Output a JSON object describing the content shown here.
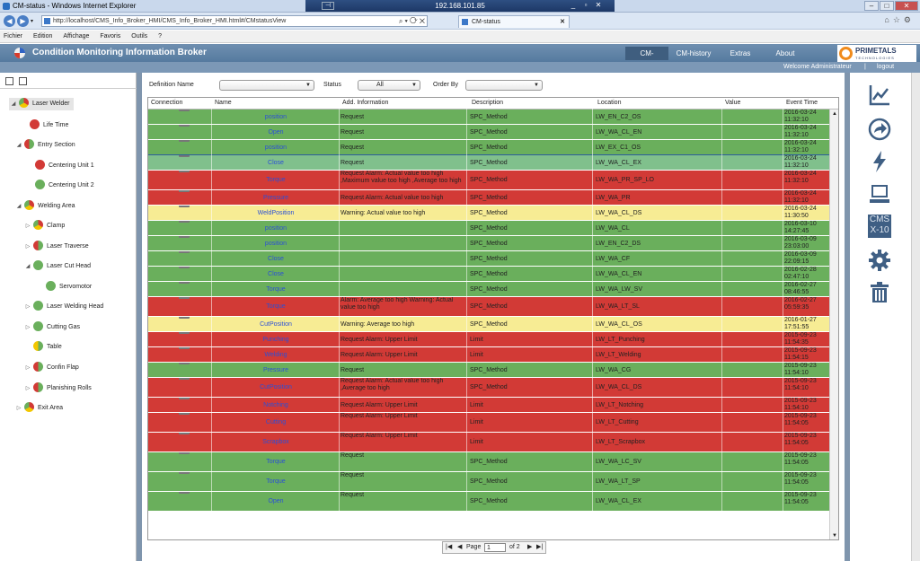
{
  "window": {
    "title": "CM-status - Windows Internet Explorer",
    "remote_host": "192.168.101.85"
  },
  "browser": {
    "address": "http://localhost/CMS_Info_Broker_HMI/CMS_Info_Broker_HMI.html#/CMstatusView",
    "tab_title": "CM-status",
    "menu": [
      "Fichier",
      "Edition",
      "Affichage",
      "Favoris",
      "Outils",
      "?"
    ]
  },
  "app": {
    "title": "Condition Monitoring Information Broker",
    "nav": [
      "CM-status",
      "CM-history",
      "Extras",
      "About"
    ],
    "brand": "PRIMETALS",
    "brand_sub": "TECHNOLOGIES",
    "welcome": "Welcome Administrateur",
    "separator": "|",
    "logout": "logout"
  },
  "colors": {
    "green": "#6aaf5c",
    "red": "#d23a36",
    "yellow": "#f7ec94",
    "header": "#5f84a9"
  },
  "tree": [
    {
      "label": "Laser Welder",
      "status": "mixed-ryg",
      "selected": true
    },
    {
      "label": "Life Time",
      "status": "red"
    },
    {
      "label": "Entry Section",
      "status": "mixed-rg"
    },
    {
      "label": "Centering Unit 1",
      "status": "red"
    },
    {
      "label": "Centering Unit 2",
      "status": "green"
    },
    {
      "label": "Welding Area",
      "status": "mixed-ryg"
    },
    {
      "label": "Clamp",
      "status": "mixed-ryg"
    },
    {
      "label": "Laser Traverse",
      "status": "mixed-rg"
    },
    {
      "label": "Laser Cut Head",
      "status": "green"
    },
    {
      "label": "Servomotor",
      "status": "green"
    },
    {
      "label": "Laser Welding Head",
      "status": "green"
    },
    {
      "label": "Cutting Gas",
      "status": "green"
    },
    {
      "label": "Table",
      "status": "mixed-yg"
    },
    {
      "label": "Confin Flap",
      "status": "mixed-rg"
    },
    {
      "label": "Planishing Rolls",
      "status": "mixed-rg"
    },
    {
      "label": "Exit Area",
      "status": "mixed-ryg"
    }
  ],
  "filters": {
    "definition_label": "Definition Name",
    "definition_value": "",
    "status_label": "Status",
    "status_value": "All",
    "orderby_label": "Order By",
    "orderby_value": ""
  },
  "table": {
    "columns": [
      "Connection",
      "Name",
      "Add. Information",
      "Description",
      "Location",
      "Value",
      "Event Time"
    ],
    "rows": [
      {
        "name": "position",
        "add": "Request",
        "desc": "SPC_Method",
        "loc": "LW_EN_C2_OS",
        "time": "2016-03-24 11:32:10",
        "color": "green"
      },
      {
        "name": "Open",
        "add": "Request",
        "desc": "SPC_Method",
        "loc": "LW_WA_CL_EN",
        "time": "2016-03-24 11:32:10",
        "color": "green"
      },
      {
        "name": "position",
        "add": "Request",
        "desc": "SPC_Method",
        "loc": "LW_EX_C1_OS",
        "time": "2016-03-24 11:32:10",
        "color": "green"
      },
      {
        "name": "Close",
        "add": "Request",
        "desc": "SPC_Method",
        "loc": "LW_WA_CL_EX",
        "time": "2016-03-24 11:32:10",
        "color": "green",
        "sel": true
      },
      {
        "name": "Torque",
        "add": "Request Alarm: Actual value too high ,Maximum value too high ,Average too high",
        "desc": "SPC_Method",
        "loc": "LW_WA_PR_SP_LO",
        "time": "2016-03-24 11:32:10",
        "color": "red",
        "tall": true
      },
      {
        "name": "Pressure",
        "add": "Request Alarm: Actual value too high",
        "desc": "SPC_Method",
        "loc": "LW_WA_PR",
        "time": "2016-03-24 11:32:10",
        "color": "red"
      },
      {
        "name": "WeldPosition",
        "add": "Warning: Actual value too high",
        "desc": "SPC_Method",
        "loc": "LW_WA_CL_DS",
        "time": "2016-03-24 11:30:50",
        "color": "yellow"
      },
      {
        "name": "position",
        "add": "",
        "desc": "SPC_Method",
        "loc": "LW_WA_CL",
        "time": "2016-03-10 14:27:45",
        "color": "green"
      },
      {
        "name": "position",
        "add": "",
        "desc": "SPC_Method",
        "loc": "LW_EN_C2_DS",
        "time": "2016-03-09 23:03:00",
        "color": "green"
      },
      {
        "name": "Close",
        "add": "",
        "desc": "SPC_Method",
        "loc": "LW_WA_CF",
        "time": "2016-03-09 22:09:15",
        "color": "green"
      },
      {
        "name": "Close",
        "add": "",
        "desc": "SPC_Method",
        "loc": "LW_WA_CL_EN",
        "time": "2016-02-28 02:47:10",
        "color": "green"
      },
      {
        "name": "Torque",
        "add": "",
        "desc": "SPC_Method",
        "loc": "LW_WA_LW_SV",
        "time": "2016-02-27 08:46:55",
        "color": "green"
      },
      {
        "name": "Torque",
        "add": "Alarm: Average too high  Warning: Actual value too high",
        "desc": "SPC_Method",
        "loc": "LW_WA_LT_SL",
        "time": "2016-02-27 05:59:35",
        "color": "red",
        "tall": true
      },
      {
        "name": "CutPosition",
        "add": "Warning: Average too high",
        "desc": "SPC_Method",
        "loc": "LW_WA_CL_OS",
        "time": "2016-01-27 17:51:55",
        "color": "yellow"
      },
      {
        "name": "Punching",
        "add": "Request Alarm: Upper Limit",
        "desc": "Limit",
        "loc": "LW_LT_Punching",
        "time": "2015-09-23 11:54:35",
        "color": "red"
      },
      {
        "name": "Welding",
        "add": "Request Alarm: Upper Limit",
        "desc": "Limit",
        "loc": "LW_LT_Welding",
        "time": "2015-09-23 11:54:15",
        "color": "red"
      },
      {
        "name": "Pressure",
        "add": "Request",
        "desc": "SPC_Method",
        "loc": "LW_WA_CG",
        "time": "2015-09-23 11:54:10",
        "color": "green"
      },
      {
        "name": "CutPosition",
        "add": "Request Alarm: Actual value too high ,Average too high",
        "desc": "SPC_Method",
        "loc": "LW_WA_CL_DS",
        "time": "2015-09-23 11:54:10",
        "color": "red",
        "tall": true
      },
      {
        "name": "Notching",
        "add": "Request Alarm: Upper Limit",
        "desc": "Limit",
        "loc": "LW_LT_Notching",
        "time": "2015-09-23 11:54:10",
        "color": "red"
      },
      {
        "name": "Cutting",
        "add": "Request Alarm: Upper Limit",
        "desc": "Limit",
        "loc": "LW_LT_Cutting",
        "time": "2015-09-23 11:54:05",
        "color": "red",
        "tall": true
      },
      {
        "name": "Scrapbox",
        "add": "Request Alarm: Upper Limit",
        "desc": "Limit",
        "loc": "LW_LT_Scrapbox",
        "time": "2015-09-23 11:54:05",
        "color": "red",
        "tall": true
      },
      {
        "name": "Torque",
        "add": "Request",
        "desc": "SPC_Method",
        "loc": "LW_WA_LC_SV",
        "time": "2015-09-23 11:54:05",
        "color": "green",
        "tall": true
      },
      {
        "name": "Torque",
        "add": "Request",
        "desc": "SPC_Method",
        "loc": "LW_WA_LT_SP",
        "time": "2015-09-23 11:54:05",
        "color": "green",
        "tall": true
      },
      {
        "name": "Open",
        "add": "Request",
        "desc": "SPC_Method",
        "loc": "LW_WA_CL_EX",
        "time": "2015-09-23 11:54:05",
        "color": "green",
        "tall": true
      }
    ]
  },
  "pager": {
    "page_label": "Page",
    "page": "1",
    "of_label": "of 2"
  },
  "right_icons": [
    "chart-icon",
    "forward-circle-icon",
    "lightning-icon",
    "computer-icon",
    "cms-x10-icon",
    "gear-icon",
    "trash-icon"
  ],
  "cms_icon_text": {
    "top": "CMS",
    "bottom": "X-10"
  }
}
